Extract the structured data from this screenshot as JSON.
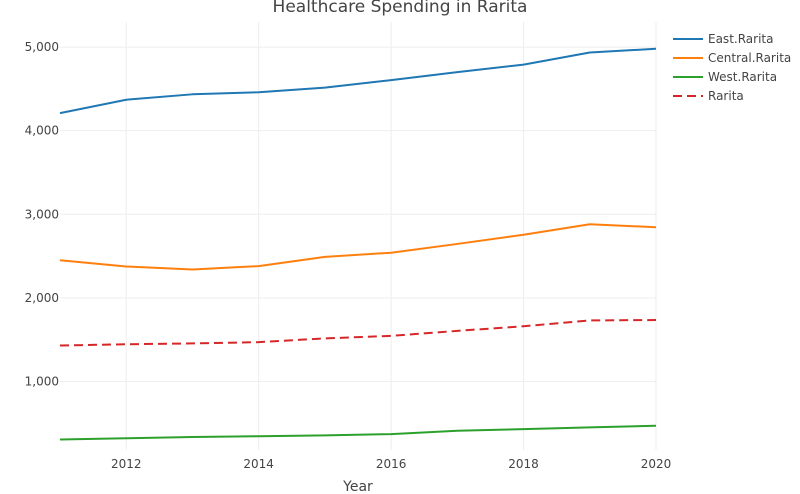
{
  "chart_data": {
    "type": "line",
    "title": "Healthcare Spending in Rarita",
    "xlabel": "Year",
    "ylabel": "",
    "xlim": [
      2011,
      2020
    ],
    "ylim": [
      180,
      5300
    ],
    "x_ticks": [
      2012,
      2014,
      2016,
      2018,
      2020
    ],
    "y_ticks": [
      1000,
      2000,
      3000,
      4000,
      5000
    ],
    "y_tick_labels": [
      "1,000",
      "2,000",
      "3,000",
      "4,000",
      "5,000"
    ],
    "grid": true,
    "legend_position": "top-right",
    "x": [
      2011,
      2012,
      2013,
      2014,
      2015,
      2016,
      2017,
      2018,
      2019,
      2020
    ],
    "series": [
      {
        "name": "East.Rarita",
        "color": "#1f77b4",
        "dash": "solid",
        "values": [
          4210,
          4370,
          4435,
          4460,
          4515,
          4605,
          4700,
          4790,
          4935,
          4980
        ]
      },
      {
        "name": "Central.Rarita",
        "color": "#ff7f0e",
        "dash": "solid",
        "values": [
          2450,
          2375,
          2340,
          2380,
          2490,
          2540,
          2645,
          2755,
          2880,
          2845
        ]
      },
      {
        "name": "West.Rarita",
        "color": "#2ca02c",
        "dash": "solid",
        "values": [
          305,
          320,
          335,
          345,
          355,
          370,
          410,
          430,
          450,
          470
        ]
      },
      {
        "name": "Rarita",
        "color": "#d62728",
        "dash": "dash",
        "values": [
          1430,
          1445,
          1455,
          1470,
          1515,
          1545,
          1605,
          1660,
          1730,
          1735
        ]
      }
    ]
  }
}
